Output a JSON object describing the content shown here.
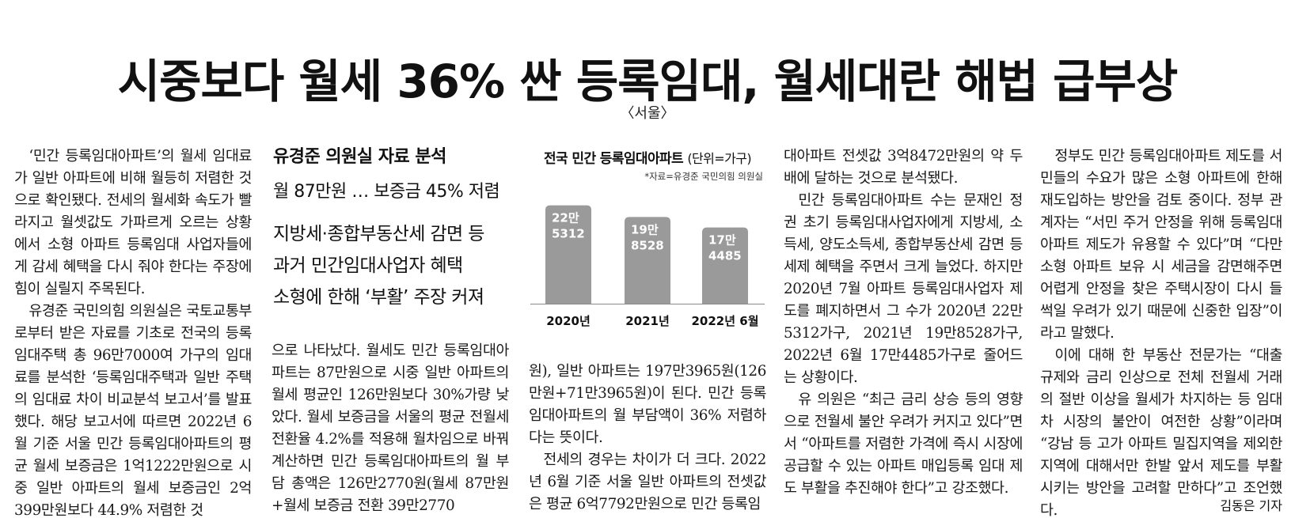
{
  "headline": "시중보다 월세 36% 싼 등록임대, 월세대란 해법 급부상",
  "source": "〈서울〉",
  "subheads": {
    "line1": "유경준 의원실 자료 분석",
    "line2": "월 87만원 … 보증금 45% 저렴",
    "line3": "지방세·종합부동산세 감면 등",
    "line4": "과거 민간임대사업자 혜택",
    "line5": "소형에 한해 ‘부활’ 주장 커져"
  },
  "chart_data": {
    "type": "bar",
    "title": "전국 민간 등록임대아파트",
    "unit": "(단위=가구)",
    "note": "*자료=유경준 국민의힘 의원실",
    "categories": [
      "2020년",
      "2021년",
      "2022년 6월"
    ],
    "values": [
      225312,
      198528,
      174485
    ],
    "labels": [
      [
        "22만",
        "5312"
      ],
      [
        "19만",
        "8528"
      ],
      [
        "17만",
        "4485"
      ]
    ],
    "bar_color": "#9a9a9a",
    "label_color": "#ffffff"
  },
  "col1": [
    "‘민간 등록임대아파트’의 월세 임대료가 일반 아파트에 비해 월등히 저렴한 것으로 확인됐다. 전세의 월세화 속도가 빨라지고 월셋값도 가파르게 오르는 상황에서 소형 아파트 등록임대 사업자들에게 감세 혜택을 다시 줘야 한다는 주장에 힘이 실릴지 주목된다.",
    "유경준 국민의힘 의원실은 국토교통부로부터 받은 자료를 기초로 전국의 등록임대주택 총 96만7000여 가구의 임대료를 분석한 ‘등록임대주택과 일반 주택의 임대료 차이 비교분석 보고서’를 발표했다. 해당 보고서에 따르면 2022년 6월 기준 서울 민간 등록임대아파트의 평균 월세 보증금은 1억1222만원으로 시중 일반 아파트의 월세 보증금인 2억399만원보다 44.9% 저렴한 것"
  ],
  "col3": [
    "으로 나타났다. 월세도 민간 등록임대아파트는 87만원으로 시중 일반 아파트의 월세 평균인 126만원보다 30%가량 낮았다. 월세 보증금을 서울의 평균 전월세 전환율 4.2%를 적용해 월차임으로 바꿔 계산하면 민간 등록임대아파트의 월 부담 총액은 126만2770원(월세 87만원+월세 보증금 전환 39만2770"
  ],
  "col4": [
    "원), 일반 아파트는 197만3965원(126만원+71만3965원)이 된다. 민간 등록임대아파트의 월 부담액이 36% 저렴하다는 뜻이다.",
    "전세의 경우는 차이가 더 크다. 2022년 6월 기준 서울 일반 아파트의 전셋값은 평균 6억7792만원으로 민간 등록임"
  ],
  "col5": [
    "대아파트 전셋값 3억8472만원의 약 두 배에 달하는 것으로 분석됐다.",
    "민간 등록임대아파트 수는 문재인 정권 초기 등록임대사업자에게 지방세, 소득세, 양도소득세, 종합부동산세 감면 등 세제 혜택을 주면서 크게 늘었다. 하지만 2020년 7월 아파트 등록임대사업자 제도를 폐지하면서 그 수가 2020년 22만5312가구, 2021년 19만8528가구, 2022년 6월 17만4485가구로 줄어드는 상황이다.",
    "유 의원은 “최근 금리 상승 등의 영향으로 전월세 불안 우려가 커지고 있다”면서 “아파트를 저렴한 가격에 즉시 시장에 공급할 수 있는 아파트 매입등록 임대 제도 부활을 추진해야 한다”고 강조했다."
  ],
  "col6": [
    "정부도 민간 등록임대아파트 제도를 서민들의 수요가 많은 소형 아파트에 한해 재도입하는 방안을 검토 중이다. 정부 관계자는 “서민 주거 안정을 위해 등록임대아파트 제도가 유용할 수 있다”며 “다만 소형 아파트 보유 시 세금을 감면해주면 어렵게 안정을 찾은 주택시장이 다시 들썩일 우려가 있기 때문에 신중한 입장”이라고 말했다.",
    "이에 대해 한 부동산 전문가는 “대출 규제와 금리 인상으로 전체 전월세 거래의 절반 이상을 월세가 차지하는 등 임대차 시장의 불안이 여전한 상황”이라며 “강남 등 고가 아파트 밀집지역을 제외한 지역에 대해서만 한발 앞서 제도를 부활시키는 방안을 고려할 만하다”고 조언했다."
  ],
  "byline": "김동은 기자"
}
